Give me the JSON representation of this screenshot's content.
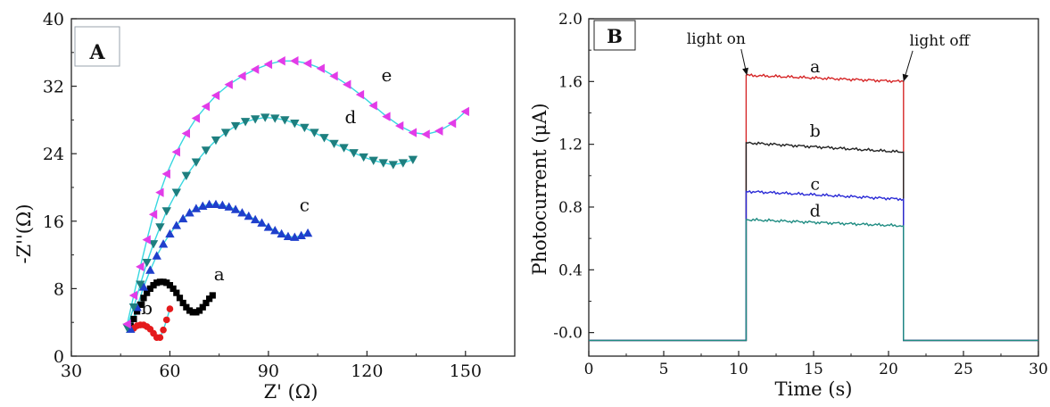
{
  "chart_data": [
    {
      "type": "scatter",
      "panel_label": "A",
      "xlabel": "Z' (Ω)",
      "ylabel": "-Z''(Ω)",
      "xlim": [
        30,
        165
      ],
      "ylim": [
        0,
        40
      ],
      "xticks": [
        30,
        60,
        90,
        120,
        150
      ],
      "yticks": [
        0,
        8,
        16,
        24,
        32,
        40
      ],
      "series": [
        {
          "name": "a",
          "color": "#000000",
          "marker": "square",
          "x": [
            48,
            49,
            50,
            51,
            52,
            53,
            54,
            55,
            56,
            57,
            58,
            59,
            60,
            61,
            62,
            63,
            64,
            65,
            66,
            67,
            68,
            69,
            70,
            71,
            72,
            73
          ],
          "y": [
            3.6,
            4.4,
            5.3,
            6.1,
            6.9,
            7.5,
            8.0,
            8.4,
            8.7,
            8.8,
            8.8,
            8.7,
            8.4,
            8.0,
            7.5,
            6.9,
            6.3,
            5.8,
            5.4,
            5.2,
            5.2,
            5.4,
            5.8,
            6.3,
            6.8,
            7.2
          ]
        },
        {
          "name": "b",
          "color": "#e41a1c",
          "marker": "circle",
          "x": [
            49,
            50,
            51,
            52,
            53,
            54,
            55,
            56,
            57,
            58,
            59,
            60
          ],
          "y": [
            3.3,
            3.6,
            3.7,
            3.7,
            3.5,
            3.2,
            2.7,
            2.2,
            2.2,
            3.1,
            4.3,
            5.6
          ]
        },
        {
          "name": "c",
          "color": "#1f3fcc",
          "marker": "triangle-up",
          "x": [
            48,
            50,
            52,
            54,
            56,
            58,
            60,
            62,
            64,
            66,
            68,
            70,
            72,
            74,
            76,
            78,
            80,
            82,
            84,
            86,
            88,
            90,
            92,
            94,
            96,
            98,
            100,
            102
          ],
          "y": [
            3.2,
            5.8,
            8.2,
            10.2,
            11.9,
            13.3,
            14.5,
            15.5,
            16.3,
            17.0,
            17.5,
            17.8,
            18.0,
            18.0,
            17.9,
            17.7,
            17.4,
            17.0,
            16.6,
            16.2,
            15.8,
            15.3,
            14.9,
            14.5,
            14.2,
            14.1,
            14.3,
            14.6
          ]
        },
        {
          "name": "d",
          "color": "#1e7f7f",
          "marker": "triangle-down",
          "x": [
            47,
            49,
            51,
            53,
            55,
            57,
            59,
            62,
            65,
            68,
            71,
            74,
            77,
            80,
            83,
            86,
            89,
            92,
            95,
            98,
            101,
            104,
            107,
            110,
            113,
            116,
            119,
            122,
            125,
            128,
            131,
            134
          ],
          "y": [
            3.4,
            5.8,
            8.5,
            11.1,
            13.3,
            15.3,
            17.2,
            19.4,
            21.4,
            23.0,
            24.4,
            25.6,
            26.5,
            27.3,
            27.8,
            28.1,
            28.3,
            28.2,
            28.0,
            27.6,
            27.1,
            26.5,
            25.9,
            25.2,
            24.7,
            24.1,
            23.6,
            23.2,
            22.9,
            22.7,
            22.9,
            23.3
          ]
        },
        {
          "name": "e",
          "color": "#e23ce8",
          "marker": "triangle-left",
          "x": [
            47,
            49,
            51,
            53,
            55,
            57,
            59,
            62,
            65,
            68,
            71,
            74,
            78,
            82,
            86,
            90,
            94,
            98,
            102,
            106,
            110,
            114,
            118,
            122,
            126,
            130,
            134,
            138,
            142,
            146,
            150
          ],
          "y": [
            3.8,
            7.2,
            10.6,
            13.8,
            16.8,
            19.4,
            21.6,
            24.2,
            26.4,
            28.2,
            29.6,
            30.9,
            32.2,
            33.2,
            34.0,
            34.6,
            35.0,
            35.0,
            34.7,
            34.1,
            33.2,
            32.2,
            31.0,
            29.7,
            28.4,
            27.3,
            26.5,
            26.3,
            26.7,
            27.6,
            29.0
          ]
        }
      ],
      "fit_color": "#38d7e0",
      "curve_labels": [
        {
          "text": "a",
          "x": 75,
          "y": 9.0
        },
        {
          "text": "b",
          "x": 53,
          "y": 5.0
        },
        {
          "text": "c",
          "x": 101,
          "y": 17.2
        },
        {
          "text": "d",
          "x": 115,
          "y": 27.6
        },
        {
          "text": "e",
          "x": 126,
          "y": 32.6
        }
      ]
    },
    {
      "type": "line",
      "panel_label": "B",
      "xlabel": "Time (s)",
      "ylabel": "Photocurrent (μA)",
      "xlim": [
        0,
        30
      ],
      "ylim": [
        -0.15,
        2.0
      ],
      "xticks": [
        0,
        5,
        10,
        15,
        20,
        25,
        30
      ],
      "yticks": [
        -0.0,
        0.4,
        0.8,
        1.2,
        1.6,
        2.0
      ],
      "ytick_labels": [
        "-0.0",
        "0.4",
        "0.8",
        "1.2",
        "1.6",
        "2.0"
      ],
      "baseline": -0.05,
      "light_on": 10.5,
      "light_off": 21.0,
      "series": [
        {
          "name": "a",
          "color": "#d62728",
          "level_start": 1.64,
          "level_end": 1.6
        },
        {
          "name": "b",
          "color": "#222222",
          "level_start": 1.21,
          "level_end": 1.15
        },
        {
          "name": "c",
          "color": "#2a2ad6",
          "level_start": 0.9,
          "level_end": 0.85
        },
        {
          "name": "d",
          "color": "#1f8c82",
          "level_start": 0.72,
          "level_end": 0.68
        }
      ],
      "curve_labels": [
        {
          "text": "a",
          "x": 15.1,
          "y": 1.66
        },
        {
          "text": "b",
          "x": 15.1,
          "y": 1.25
        },
        {
          "text": "c",
          "x": 15.1,
          "y": 0.91
        },
        {
          "text": "d",
          "x": 15.1,
          "y": 0.74
        }
      ],
      "annotations": [
        {
          "text": "light on",
          "x": 8.5,
          "y": 1.84,
          "arrow_to": [
            10.55,
            1.64
          ]
        },
        {
          "text": "light off",
          "x": 23.4,
          "y": 1.83,
          "arrow_to": [
            21.0,
            1.6
          ]
        }
      ]
    }
  ]
}
